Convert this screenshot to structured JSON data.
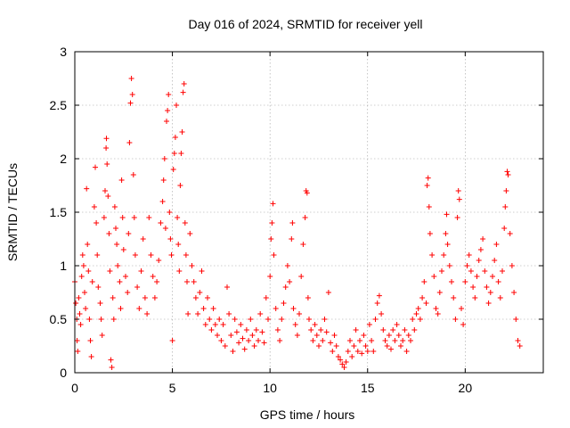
{
  "chart_data": {
    "type": "scatter",
    "title": "Day 016 of 2024, SRMTID for receiver yell",
    "xlabel": "GPS time / hours",
    "ylabel": "SRMTID / TECUs",
    "xlim": [
      0,
      24
    ],
    "ylim": [
      0,
      3
    ],
    "x_ticks": [
      "0",
      "5",
      "10",
      "15",
      "20"
    ],
    "y_ticks": [
      "0",
      "0.5",
      "1",
      "1.5",
      "2",
      "2.5",
      "3"
    ],
    "grid": true,
    "marker": "plus",
    "colors": {
      "series": "#ff0000",
      "grid": "#a0a0a0",
      "axes": "#000000"
    },
    "series": [
      {
        "name": "SRMTID",
        "points": [
          [
            0.0,
            0.85
          ],
          [
            0.05,
            0.65
          ],
          [
            0.1,
            0.5
          ],
          [
            0.12,
            0.3
          ],
          [
            0.15,
            0.2
          ],
          [
            0.2,
            0.7
          ],
          [
            0.25,
            0.55
          ],
          [
            0.3,
            0.45
          ],
          [
            0.35,
            0.9
          ],
          [
            0.4,
            1.1
          ],
          [
            0.45,
            1.0
          ],
          [
            0.5,
            0.75
          ],
          [
            0.55,
            0.6
          ],
          [
            0.6,
            1.72
          ],
          [
            0.65,
            1.2
          ],
          [
            0.7,
            0.95
          ],
          [
            0.75,
            0.5
          ],
          [
            0.8,
            0.3
          ],
          [
            0.85,
            0.15
          ],
          [
            0.9,
            0.85
          ],
          [
            1.0,
            1.55
          ],
          [
            1.05,
            1.92
          ],
          [
            1.1,
            1.4
          ],
          [
            1.15,
            1.1
          ],
          [
            1.2,
            0.8
          ],
          [
            1.3,
            0.65
          ],
          [
            1.35,
            0.5
          ],
          [
            1.4,
            0.35
          ],
          [
            1.5,
            1.45
          ],
          [
            1.55,
            1.7
          ],
          [
            1.6,
            2.1
          ],
          [
            1.62,
            2.19
          ],
          [
            1.65,
            1.95
          ],
          [
            1.7,
            1.65
          ],
          [
            1.75,
            1.3
          ],
          [
            1.8,
            0.95
          ],
          [
            1.85,
            0.12
          ],
          [
            1.9,
            0.05
          ],
          [
            1.95,
            0.7
          ],
          [
            2.0,
            0.5
          ],
          [
            2.05,
            1.55
          ],
          [
            2.1,
            1.35
          ],
          [
            2.15,
            1.2
          ],
          [
            2.2,
            1.0
          ],
          [
            2.3,
            0.85
          ],
          [
            2.35,
            0.6
          ],
          [
            2.4,
            1.8
          ],
          [
            2.45,
            1.45
          ],
          [
            2.5,
            1.15
          ],
          [
            2.6,
            0.9
          ],
          [
            2.7,
            0.75
          ],
          [
            2.75,
            1.3
          ],
          [
            2.8,
            2.15
          ],
          [
            2.85,
            2.52
          ],
          [
            2.9,
            2.75
          ],
          [
            2.95,
            2.6
          ],
          [
            3.0,
            1.85
          ],
          [
            3.05,
            1.45
          ],
          [
            3.1,
            1.1
          ],
          [
            3.2,
            0.8
          ],
          [
            3.3,
            0.6
          ],
          [
            3.4,
            0.95
          ],
          [
            3.5,
            1.25
          ],
          [
            3.6,
            0.7
          ],
          [
            3.7,
            0.55
          ],
          [
            3.8,
            1.45
          ],
          [
            3.9,
            1.1
          ],
          [
            4.0,
            0.9
          ],
          [
            4.1,
            0.7
          ],
          [
            4.2,
            0.85
          ],
          [
            4.3,
            1.05
          ],
          [
            4.4,
            1.4
          ],
          [
            4.5,
            1.6
          ],
          [
            4.55,
            1.8
          ],
          [
            4.6,
            2.0
          ],
          [
            4.65,
            1.35
          ],
          [
            4.7,
            2.35
          ],
          [
            4.75,
            2.45
          ],
          [
            4.8,
            2.6
          ],
          [
            4.85,
            1.5
          ],
          [
            4.9,
            1.25
          ],
          [
            4.95,
            1.1
          ],
          [
            5.0,
            0.3
          ],
          [
            5.05,
            1.9
          ],
          [
            5.1,
            2.05
          ],
          [
            5.15,
            2.2
          ],
          [
            5.2,
            2.5
          ],
          [
            5.25,
            1.45
          ],
          [
            5.3,
            1.2
          ],
          [
            5.35,
            0.95
          ],
          [
            5.4,
            1.75
          ],
          [
            5.45,
            2.05
          ],
          [
            5.5,
            2.25
          ],
          [
            5.55,
            2.62
          ],
          [
            5.6,
            2.7
          ],
          [
            5.65,
            1.4
          ],
          [
            5.7,
            1.1
          ],
          [
            5.75,
            0.85
          ],
          [
            5.8,
            0.55
          ],
          [
            5.9,
            1.3
          ],
          [
            6.0,
            1.0
          ],
          [
            6.1,
            0.85
          ],
          [
            6.2,
            0.7
          ],
          [
            6.3,
            0.55
          ],
          [
            6.4,
            0.75
          ],
          [
            6.5,
            0.95
          ],
          [
            6.6,
            0.6
          ],
          [
            6.7,
            0.45
          ],
          [
            6.8,
            0.7
          ],
          [
            6.9,
            0.5
          ],
          [
            7.0,
            0.4
          ],
          [
            7.1,
            0.6
          ],
          [
            7.2,
            0.45
          ],
          [
            7.3,
            0.35
          ],
          [
            7.4,
            0.5
          ],
          [
            7.5,
            0.3
          ],
          [
            7.6,
            0.45
          ],
          [
            7.7,
            0.25
          ],
          [
            7.8,
            0.8
          ],
          [
            7.9,
            0.55
          ],
          [
            8.0,
            0.35
          ],
          [
            8.1,
            0.2
          ],
          [
            8.2,
            0.5
          ],
          [
            8.3,
            0.38
          ],
          [
            8.4,
            0.28
          ],
          [
            8.5,
            0.45
          ],
          [
            8.6,
            0.32
          ],
          [
            8.7,
            0.22
          ],
          [
            8.8,
            0.4
          ],
          [
            8.9,
            0.3
          ],
          [
            9.0,
            0.5
          ],
          [
            9.1,
            0.35
          ],
          [
            9.2,
            0.25
          ],
          [
            9.3,
            0.4
          ],
          [
            9.4,
            0.3
          ],
          [
            9.5,
            0.55
          ],
          [
            9.6,
            0.38
          ],
          [
            9.7,
            0.28
          ],
          [
            9.8,
            0.7
          ],
          [
            9.9,
            0.5
          ],
          [
            10.0,
            0.9
          ],
          [
            10.05,
            1.25
          ],
          [
            10.1,
            1.4
          ],
          [
            10.15,
            1.58
          ],
          [
            10.2,
            1.1
          ],
          [
            10.3,
            0.6
          ],
          [
            10.4,
            0.4
          ],
          [
            10.5,
            0.3
          ],
          [
            10.6,
            0.5
          ],
          [
            10.7,
            0.65
          ],
          [
            10.8,
            0.8
          ],
          [
            10.9,
            1.0
          ],
          [
            11.0,
            0.85
          ],
          [
            11.1,
            1.25
          ],
          [
            11.15,
            1.4
          ],
          [
            11.2,
            0.6
          ],
          [
            11.3,
            0.45
          ],
          [
            11.4,
            0.35
          ],
          [
            11.5,
            0.55
          ],
          [
            11.6,
            0.9
          ],
          [
            11.7,
            1.2
          ],
          [
            11.8,
            1.45
          ],
          [
            11.85,
            1.7
          ],
          [
            11.9,
            1.68
          ],
          [
            11.95,
            0.7
          ],
          [
            12.0,
            0.5
          ],
          [
            12.1,
            0.4
          ],
          [
            12.2,
            0.3
          ],
          [
            12.3,
            0.45
          ],
          [
            12.4,
            0.35
          ],
          [
            12.5,
            0.25
          ],
          [
            12.6,
            0.4
          ],
          [
            12.7,
            0.3
          ],
          [
            12.8,
            0.5
          ],
          [
            12.9,
            0.38
          ],
          [
            13.0,
            0.75
          ],
          [
            13.1,
            0.28
          ],
          [
            13.2,
            0.2
          ],
          [
            13.3,
            0.35
          ],
          [
            13.4,
            0.25
          ],
          [
            13.5,
            0.15
          ],
          [
            13.6,
            0.12
          ],
          [
            13.7,
            0.08
          ],
          [
            13.8,
            0.05
          ],
          [
            13.9,
            0.1
          ],
          [
            14.0,
            0.2
          ],
          [
            14.1,
            0.3
          ],
          [
            14.2,
            0.15
          ],
          [
            14.3,
            0.25
          ],
          [
            14.4,
            0.4
          ],
          [
            14.5,
            0.2
          ],
          [
            14.6,
            0.3
          ],
          [
            14.7,
            0.18
          ],
          [
            14.8,
            0.35
          ],
          [
            14.9,
            0.25
          ],
          [
            15.0,
            0.2
          ],
          [
            15.1,
            0.45
          ],
          [
            15.2,
            0.3
          ],
          [
            15.3,
            0.2
          ],
          [
            15.4,
            0.5
          ],
          [
            15.5,
            0.65
          ],
          [
            15.6,
            0.72
          ],
          [
            15.7,
            0.55
          ],
          [
            15.8,
            0.4
          ],
          [
            15.9,
            0.3
          ],
          [
            16.0,
            0.25
          ],
          [
            16.1,
            0.35
          ],
          [
            16.2,
            0.22
          ],
          [
            16.3,
            0.4
          ],
          [
            16.4,
            0.3
          ],
          [
            16.5,
            0.45
          ],
          [
            16.6,
            0.35
          ],
          [
            16.7,
            0.25
          ],
          [
            16.8,
            0.3
          ],
          [
            16.9,
            0.4
          ],
          [
            17.0,
            0.2
          ],
          [
            17.1,
            0.35
          ],
          [
            17.2,
            0.3
          ],
          [
            17.3,
            0.5
          ],
          [
            17.4,
            0.4
          ],
          [
            17.5,
            0.55
          ],
          [
            17.6,
            0.6
          ],
          [
            17.7,
            0.5
          ],
          [
            17.8,
            0.7
          ],
          [
            17.9,
            0.85
          ],
          [
            18.0,
            0.65
          ],
          [
            18.05,
            1.75
          ],
          [
            18.1,
            1.82
          ],
          [
            18.15,
            1.55
          ],
          [
            18.2,
            1.3
          ],
          [
            18.3,
            1.1
          ],
          [
            18.4,
            0.9
          ],
          [
            18.5,
            0.6
          ],
          [
            18.6,
            0.55
          ],
          [
            18.7,
            0.75
          ],
          [
            18.8,
            0.95
          ],
          [
            18.9,
            1.1
          ],
          [
            19.0,
            1.3
          ],
          [
            19.05,
            1.48
          ],
          [
            19.1,
            1.2
          ],
          [
            19.2,
            1.0
          ],
          [
            19.3,
            0.85
          ],
          [
            19.4,
            0.7
          ],
          [
            19.5,
            0.5
          ],
          [
            19.6,
            1.45
          ],
          [
            19.65,
            1.7
          ],
          [
            19.7,
            1.62
          ],
          [
            19.8,
            0.6
          ],
          [
            19.9,
            0.45
          ],
          [
            20.0,
            0.85
          ],
          [
            20.1,
            1.0
          ],
          [
            20.2,
            1.1
          ],
          [
            20.3,
            0.95
          ],
          [
            20.4,
            0.8
          ],
          [
            20.5,
            0.7
          ],
          [
            20.6,
            0.9
          ],
          [
            20.7,
            1.05
          ],
          [
            20.8,
            1.15
          ],
          [
            20.9,
            1.25
          ],
          [
            21.0,
            0.95
          ],
          [
            21.1,
            0.8
          ],
          [
            21.2,
            0.65
          ],
          [
            21.3,
            0.75
          ],
          [
            21.4,
            0.9
          ],
          [
            21.5,
            1.05
          ],
          [
            21.6,
            1.2
          ],
          [
            21.7,
            0.85
          ],
          [
            21.8,
            0.7
          ],
          [
            21.9,
            0.95
          ],
          [
            22.0,
            1.35
          ],
          [
            22.05,
            1.55
          ],
          [
            22.1,
            1.7
          ],
          [
            22.15,
            1.88
          ],
          [
            22.2,
            1.85
          ],
          [
            22.3,
            1.3
          ],
          [
            22.4,
            1.0
          ],
          [
            22.5,
            0.75
          ],
          [
            22.6,
            0.5
          ],
          [
            22.7,
            0.3
          ],
          [
            22.8,
            0.25
          ]
        ]
      }
    ]
  }
}
